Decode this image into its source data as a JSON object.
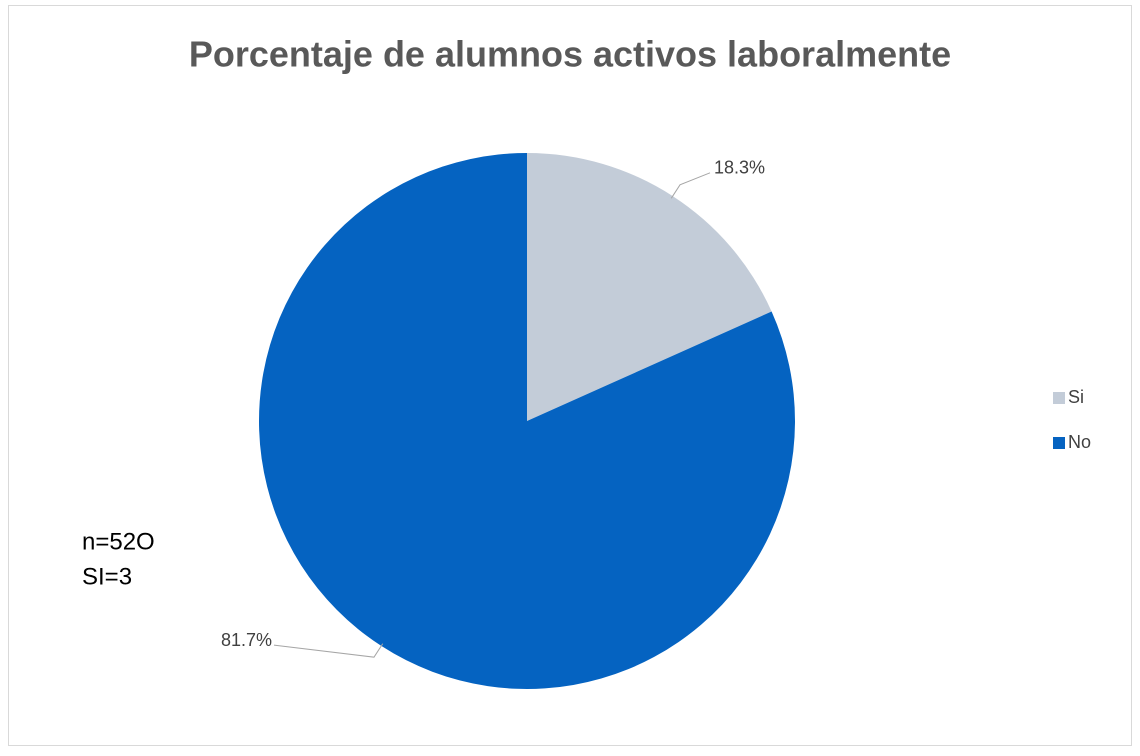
{
  "chart_data": {
    "type": "pie",
    "title": "Porcentaje de alumnos activos laboralmente",
    "categories": [
      "Si",
      "No"
    ],
    "values": [
      18.3,
      81.7
    ],
    "value_labels": [
      "18.3%",
      "81.7%"
    ],
    "colors": [
      "#c3ccd8",
      "#0563c1"
    ],
    "annotations": [
      "n=52O",
      "SI=3"
    ],
    "legend": "right"
  }
}
